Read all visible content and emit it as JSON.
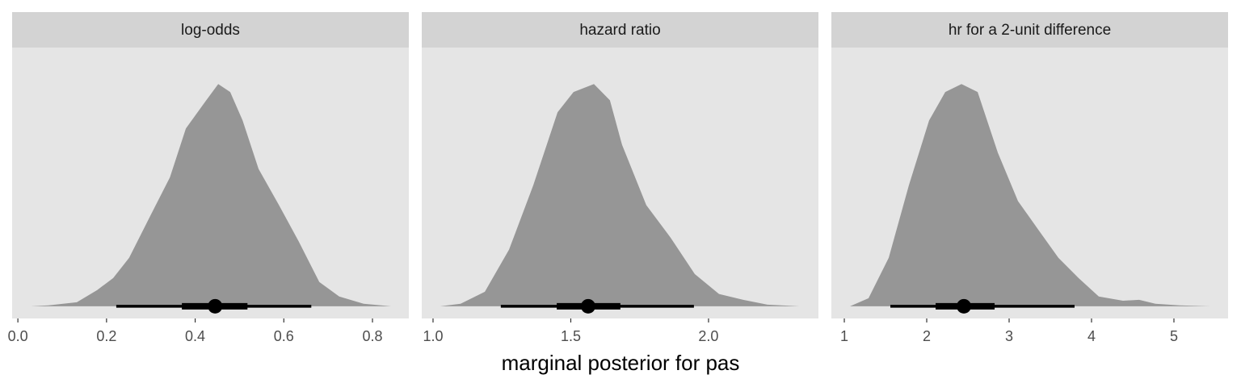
{
  "xlabel": "marginal posterior for pas",
  "chart_data": [
    {
      "type": "density",
      "title": "log-odds",
      "color": "#969696",
      "x": [
        0.029,
        0.069,
        0.133,
        0.179,
        0.215,
        0.251,
        0.297,
        0.343,
        0.379,
        0.425,
        0.452,
        0.479,
        0.507,
        0.543,
        0.589,
        0.634,
        0.68,
        0.725,
        0.78,
        0.842
      ],
      "values": [
        0,
        0.004,
        0.018,
        0.073,
        0.127,
        0.218,
        0.4,
        0.58,
        0.8,
        0.927,
        1,
        0.964,
        0.836,
        0.618,
        0.455,
        0.29,
        0.109,
        0.044,
        0.011,
        0
      ],
      "point": 0.445,
      "interval_66": [
        0.37,
        0.518
      ],
      "interval_95": [
        0.222,
        0.662
      ],
      "xlim": [
        -0.013,
        0.882
      ],
      "ylim": [
        -0.055,
        1.164
      ],
      "xticks": [
        {
          "value": 0,
          "label": "0.0"
        },
        0.2,
        0.4,
        0.6,
        0.8
      ]
    },
    {
      "type": "density",
      "title": "hazard ratio",
      "color": "#969696",
      "x": [
        1.026,
        1.1,
        1.188,
        1.276,
        1.364,
        1.452,
        1.51,
        1.584,
        1.642,
        1.686,
        1.774,
        1.862,
        1.95,
        2.038,
        2.126,
        2.214,
        2.331
      ],
      "values": [
        0,
        0.011,
        0.065,
        0.255,
        0.545,
        0.873,
        0.964,
        1,
        0.927,
        0.727,
        0.455,
        0.309,
        0.145,
        0.055,
        0.029,
        0.007,
        0
      ],
      "point": 1.563,
      "interval_66": [
        1.449,
        1.68
      ],
      "interval_95": [
        1.246,
        1.947
      ],
      "xlim": [
        0.959,
        2.399
      ],
      "ylim": [
        -0.055,
        1.164
      ],
      "xticks": [
        {
          "value": 1,
          "label": "1.0"
        },
        1.5,
        {
          "value": 2,
          "label": "2.0"
        }
      ]
    },
    {
      "type": "density",
      "title": "hr for a 2-unit difference",
      "color": "#969696",
      "x": [
        1.069,
        1.294,
        1.539,
        1.784,
        2.029,
        2.225,
        2.422,
        2.618,
        2.863,
        3.108,
        3.353,
        3.598,
        3.843,
        4.088,
        4.382,
        4.578,
        4.775,
        5.069,
        5.441
      ],
      "values": [
        0,
        0.036,
        0.218,
        0.545,
        0.836,
        0.964,
        1,
        0.964,
        0.691,
        0.473,
        0.345,
        0.218,
        0.127,
        0.044,
        0.025,
        0.029,
        0.011,
        0.004,
        0
      ],
      "point": 2.451,
      "interval_66": [
        2.108,
        2.824
      ],
      "interval_95": [
        1.559,
        3.794
      ],
      "xlim": [
        0.843,
        5.657
      ],
      "ylim": [
        -0.055,
        1.164
      ],
      "xticks": [
        1,
        2,
        3,
        4,
        5
      ]
    }
  ]
}
